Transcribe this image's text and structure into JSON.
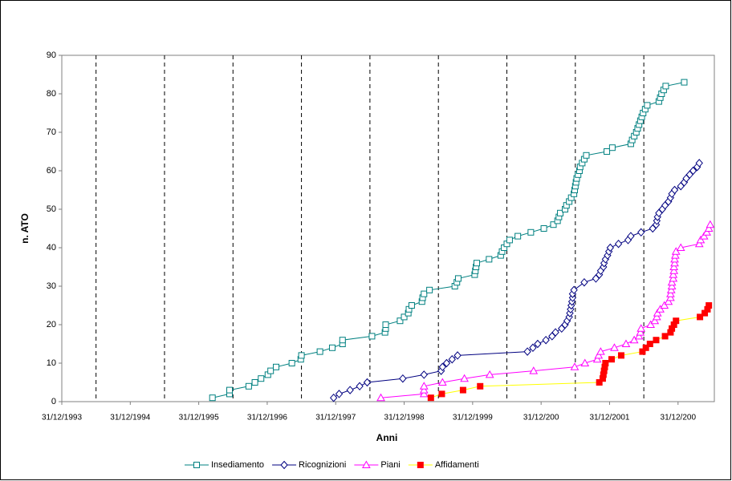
{
  "chart_data": {
    "type": "scatter",
    "x_label": "Anni",
    "y_label": "n. ATO",
    "xlim": [
      1994,
      2003.53
    ],
    "ylim": [
      0,
      90
    ],
    "xticks": [
      {
        "value": 1994,
        "label": "31/12/1993"
      },
      {
        "value": 1995,
        "label": "31/12/1994"
      },
      {
        "value": 1996,
        "label": "31/12/1995"
      },
      {
        "value": 1997,
        "label": "31/12/1996"
      },
      {
        "value": 1998,
        "label": "31/12/1997"
      },
      {
        "value": 1999,
        "label": "31/12/1998"
      },
      {
        "value": 2000,
        "label": "31/12/1999"
      },
      {
        "value": 2001,
        "label": "31/12/200"
      },
      {
        "value": 2002,
        "label": "31/12/2001"
      },
      {
        "value": 2003,
        "label": "31/12/200"
      }
    ],
    "yticks": [
      0,
      10,
      20,
      30,
      40,
      50,
      60,
      70,
      80,
      90
    ],
    "grid": true,
    "legend": "bottom",
    "series": [
      {
        "name": "Insediamento",
        "color": "#008080",
        "line_color": "#008080",
        "marker": "square",
        "x": [
          1996.2,
          1996.45,
          1996.45,
          1996.73,
          1996.82,
          1996.91,
          1997.01,
          1997.05,
          1997.13,
          1997.36,
          1997.49,
          1997.5,
          1997.77,
          1997.95,
          1998.1,
          1998.1,
          1998.53,
          1998.72,
          1998.73,
          1998.73,
          1998.94,
          1999.0,
          1999.06,
          1999.07,
          1999.11,
          1999.26,
          1999.27,
          1999.29,
          1999.37,
          1999.74,
          1999.77,
          1999.79,
          2000.03,
          2000.04,
          2000.05,
          2000.06,
          2000.24,
          2000.41,
          2000.43,
          2000.46,
          2000.5,
          2000.54,
          2000.66,
          2000.85,
          2001.04,
          2001.18,
          2001.24,
          2001.26,
          2001.28,
          2001.35,
          2001.37,
          2001.41,
          2001.44,
          2001.48,
          2001.49,
          2001.5,
          2001.51,
          2001.52,
          2001.54,
          2001.56,
          2001.57,
          2001.6,
          2001.63,
          2001.66,
          2001.96,
          2002.04,
          2002.31,
          2002.33,
          2002.36,
          2002.39,
          2002.41,
          2002.43,
          2002.45,
          2002.47,
          2002.49,
          2002.52,
          2002.55,
          2002.72,
          2002.74,
          2002.76,
          2002.79,
          2002.82,
          2003.09
        ],
        "values": [
          1,
          2,
          3,
          4,
          5,
          6,
          7,
          8,
          9,
          10,
          11,
          12,
          13,
          14,
          15,
          16,
          17,
          18,
          19,
          20,
          21,
          22,
          23,
          24,
          25,
          26,
          27,
          28,
          29,
          30,
          31,
          32,
          33,
          34,
          35,
          36,
          37,
          38,
          39,
          40,
          41,
          42,
          43,
          44,
          45,
          46,
          47,
          48,
          49,
          50,
          51,
          52,
          53,
          54,
          55,
          56,
          57,
          58,
          59,
          60,
          61,
          62,
          63,
          64,
          65,
          66,
          67,
          68,
          69,
          70,
          71,
          72,
          73,
          74,
          75,
          76,
          77,
          78,
          79,
          80,
          81,
          82,
          83
        ]
      },
      {
        "name": "Ricognizioni",
        "color": "#000080",
        "line_color": "#000080",
        "marker": "diamond",
        "x": [
          1997.97,
          1998.05,
          1998.21,
          1998.35,
          1998.46,
          1998.98,
          1999.29,
          1999.54,
          1999.56,
          1999.62,
          1999.7,
          1999.78,
          2000.8,
          2000.88,
          2000.95,
          2001.07,
          2001.16,
          2001.21,
          2001.3,
          2001.35,
          2001.38,
          2001.41,
          2001.42,
          2001.43,
          2001.44,
          2001.45,
          2001.46,
          2001.46,
          2001.48,
          2001.63,
          2001.8,
          2001.85,
          2001.87,
          2001.91,
          2001.92,
          2001.94,
          2001.97,
          2001.99,
          2002.01,
          2002.13,
          2002.27,
          2002.31,
          2002.46,
          2002.63,
          2002.68,
          2002.69,
          2002.7,
          2002.72,
          2002.77,
          2002.81,
          2002.86,
          2002.89,
          2002.91,
          2002.95,
          2003.04,
          2003.09,
          2003.12,
          2003.17,
          2003.22,
          2003.28,
          2003.31
        ],
        "values": [
          1,
          2,
          3,
          4,
          5,
          6,
          7,
          8,
          9,
          10,
          11,
          12,
          13,
          14,
          15,
          16,
          17,
          18,
          19,
          20,
          21,
          22,
          23,
          24,
          25,
          26,
          27,
          28,
          29,
          31,
          32,
          33,
          34,
          35,
          36,
          37,
          38,
          39,
          40,
          41,
          42,
          43,
          44,
          45,
          46,
          47,
          48,
          49,
          50,
          51,
          52,
          53,
          54,
          55,
          56,
          57,
          58,
          59,
          60,
          61,
          62
        ]
      },
      {
        "name": "Piani",
        "color": "#ff00ff",
        "line_color": "#ff00ff",
        "marker": "triangle",
        "x": [
          1998.66,
          1999.29,
          1999.29,
          1999.29,
          1999.56,
          1999.88,
          2000.25,
          2000.89,
          2001.49,
          2001.64,
          2001.82,
          2001.84,
          2001.87,
          2002.07,
          2002.24,
          2002.36,
          2002.43,
          2002.45,
          2002.46,
          2002.6,
          2002.66,
          2002.69,
          2002.7,
          2002.74,
          2002.8,
          2002.86,
          2002.89,
          2002.89,
          2002.9,
          2002.91,
          2002.91,
          2002.93,
          2002.93,
          2002.94,
          2002.94,
          2002.95,
          2002.95,
          2002.96,
          2002.97,
          2003.04,
          2003.31,
          2003.33,
          2003.38,
          2003.42,
          2003.45,
          2003.47
        ],
        "values": [
          1,
          2,
          3,
          4,
          5,
          6,
          7,
          8,
          9,
          10,
          11,
          12,
          13,
          14,
          15,
          16,
          17,
          18,
          19,
          20,
          21,
          22,
          23,
          24,
          25,
          26,
          27,
          28,
          29,
          30,
          31,
          32,
          33,
          34,
          35,
          36,
          37,
          38,
          39,
          40,
          41,
          42,
          43,
          44,
          45,
          46
        ]
      },
      {
        "name": "Affidamenti",
        "color": "#ff0000",
        "line_color": "#ffff00",
        "marker": "filled-square",
        "x": [
          1999.39,
          1999.55,
          1999.86,
          2000.11,
          2001.85,
          2001.9,
          2001.91,
          2001.92,
          2001.93,
          2001.94,
          2002.03,
          2002.17,
          2002.48,
          2002.53,
          2002.59,
          2002.68,
          2002.81,
          2002.89,
          2002.91,
          2002.94,
          2002.97,
          2003.32,
          2003.39,
          2003.43,
          2003.45
        ],
        "values": [
          1,
          2,
          3,
          4,
          5,
          6,
          7,
          8,
          9,
          10,
          11,
          12,
          13,
          14,
          15,
          16,
          17,
          18,
          19,
          20,
          21,
          22,
          23,
          24,
          25
        ]
      }
    ]
  }
}
